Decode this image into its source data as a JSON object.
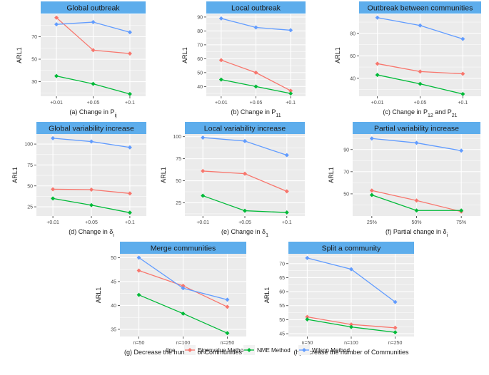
{
  "chart_data": [
    {
      "type": "line",
      "title": "Global outbreak",
      "ylabel": "ARL1",
      "xlabel_main": "(a) Change in P",
      "xlabel_sub": "ij",
      "xlabel_rest": "",
      "categories": [
        "+0.01",
        "+0.05",
        "+0.1"
      ],
      "ylim": [
        17,
        90
      ],
      "yticks": [
        30,
        50,
        70
      ],
      "series": [
        {
          "name": "Eigenvalue Method",
          "values": [
            87,
            58,
            55
          ]
        },
        {
          "name": "NME Method",
          "values": [
            35,
            28,
            19
          ]
        },
        {
          "name": "Wilson Method",
          "values": [
            81,
            83,
            74
          ]
        }
      ]
    },
    {
      "type": "line",
      "title": "Local outbreak",
      "ylabel": "ARL1",
      "xlabel_main": "(b) Change in P",
      "xlabel_sub": "11",
      "xlabel_rest": "",
      "categories": [
        "+0.01",
        "+0.05",
        "+0.1"
      ],
      "ylim": [
        33,
        92
      ],
      "yticks": [
        40,
        50,
        60,
        70,
        80,
        90
      ],
      "series": [
        {
          "name": "Eigenvalue Method",
          "values": [
            59,
            50,
            37
          ]
        },
        {
          "name": "NME Method",
          "values": [
            45,
            40,
            35
          ]
        },
        {
          "name": "Wilson Method",
          "values": [
            89,
            82.5,
            80.5
          ]
        }
      ]
    },
    {
      "type": "line",
      "title": "Outbreak between communities",
      "ylabel": "ARL1",
      "xlabel_main": "(c) Change in P",
      "xlabel_sub": "12",
      "xlabel_rest": " and P",
      "xlabel_sub2": "21",
      "categories": [
        "+0.01",
        "+0.05",
        "+0.1"
      ],
      "ylim": [
        24,
        97
      ],
      "yticks": [
        40,
        60,
        80
      ],
      "series": [
        {
          "name": "Eigenvalue Method",
          "values": [
            53,
            46,
            44
          ]
        },
        {
          "name": "NME Method",
          "values": [
            43,
            35,
            26
          ]
        },
        {
          "name": "Wilson Method",
          "values": [
            94,
            87,
            75
          ]
        }
      ]
    },
    {
      "type": "line",
      "title": "Global variability increase",
      "ylabel": "ARL1",
      "xlabel_main": "(d) Change in δ",
      "xlabel_sub": "i",
      "xlabel_rest": "",
      "categories": [
        "+0.01",
        "+0.05",
        "+0.1"
      ],
      "ylim": [
        14,
        112
      ],
      "yticks": [
        25,
        50,
        75,
        100
      ],
      "series": [
        {
          "name": "Eigenvalue Method",
          "values": [
            46,
            45.5,
            41
          ]
        },
        {
          "name": "NME Method",
          "values": [
            35,
            27,
            18
          ]
        },
        {
          "name": "Wilson Method",
          "values": [
            107,
            103,
            96
          ]
        }
      ]
    },
    {
      "type": "line",
      "title": "Local variability increase",
      "ylabel": "ARL1",
      "xlabel_main": "(e) Change in δ",
      "xlabel_sub": "1",
      "xlabel_rest": "",
      "categories": [
        "+0.01",
        "+0.05",
        "+0.1"
      ],
      "ylim": [
        10,
        103
      ],
      "yticks": [
        25,
        50,
        75,
        100
      ],
      "series": [
        {
          "name": "Eigenvalue Method",
          "values": [
            61,
            58,
            38
          ]
        },
        {
          "name": "NME Method",
          "values": [
            33,
            16,
            14
          ]
        },
        {
          "name": "Wilson Method",
          "values": [
            99,
            95,
            79
          ]
        }
      ]
    },
    {
      "type": "line",
      "title": "Partial variability increase",
      "ylabel": "ARL1",
      "xlabel_main": "(f) Partial change in δ",
      "xlabel_sub": "i",
      "xlabel_rest": "",
      "categories": [
        "25%",
        "50%",
        "75%"
      ],
      "ylim": [
        30,
        104
      ],
      "yticks": [
        50,
        70,
        90
      ],
      "series": [
        {
          "name": "Eigenvalue Method",
          "values": [
            53,
            44,
            34
          ]
        },
        {
          "name": "NME Method",
          "values": [
            49,
            35,
            35
          ]
        },
        {
          "name": "Wilson Method",
          "values": [
            100,
            96,
            89
          ]
        }
      ]
    },
    {
      "type": "line",
      "title": "Merge communities",
      "ylabel": "ARL1",
      "xlabel_main": "(g) Decrease the number of Communities",
      "xlabel_sub": "",
      "xlabel_rest": "",
      "categories": [
        "n=50",
        "n=100",
        "n=250"
      ],
      "ylim": [
        33.5,
        50.8
      ],
      "yticks": [
        35,
        40,
        45,
        50
      ],
      "series": [
        {
          "name": "Eigenvalue Method",
          "values": [
            47.3,
            44.1,
            39.7
          ]
        },
        {
          "name": "NME Method",
          "values": [
            42.2,
            38.3,
            34.2
          ]
        },
        {
          "name": "Wilson Method",
          "values": [
            50,
            43.6,
            41.2
          ]
        }
      ]
    },
    {
      "type": "line",
      "title": "Split a community",
      "ylabel": "ARL1",
      "xlabel_main": "(h) Increase the number of Communities",
      "xlabel_sub": "",
      "xlabel_rest": "",
      "categories": [
        "n=50",
        "n=100",
        "n=250"
      ],
      "ylim": [
        44,
        73.5
      ],
      "yticks": [
        45,
        50,
        55,
        60,
        65,
        70
      ],
      "series": [
        {
          "name": "Eigenvalue Method",
          "values": [
            51,
            48.3,
            47.1
          ]
        },
        {
          "name": "NME Method",
          "values": [
            50.1,
            47.4,
            45.5
          ]
        },
        {
          "name": "Wilson Method",
          "values": [
            72,
            68,
            56.3
          ]
        }
      ]
    }
  ],
  "legend": {
    "title": "line",
    "items": [
      "Eigenvalue Method",
      "NME Method",
      "Wilson Method"
    ]
  },
  "colors": {
    "Eigenvalue Method": "#F8766D",
    "NME Method": "#00BA38",
    "Wilson Method": "#619CFF",
    "strip": "#5DADEC",
    "panel": "#EBEBEB",
    "grid": "#FFFFFF"
  }
}
